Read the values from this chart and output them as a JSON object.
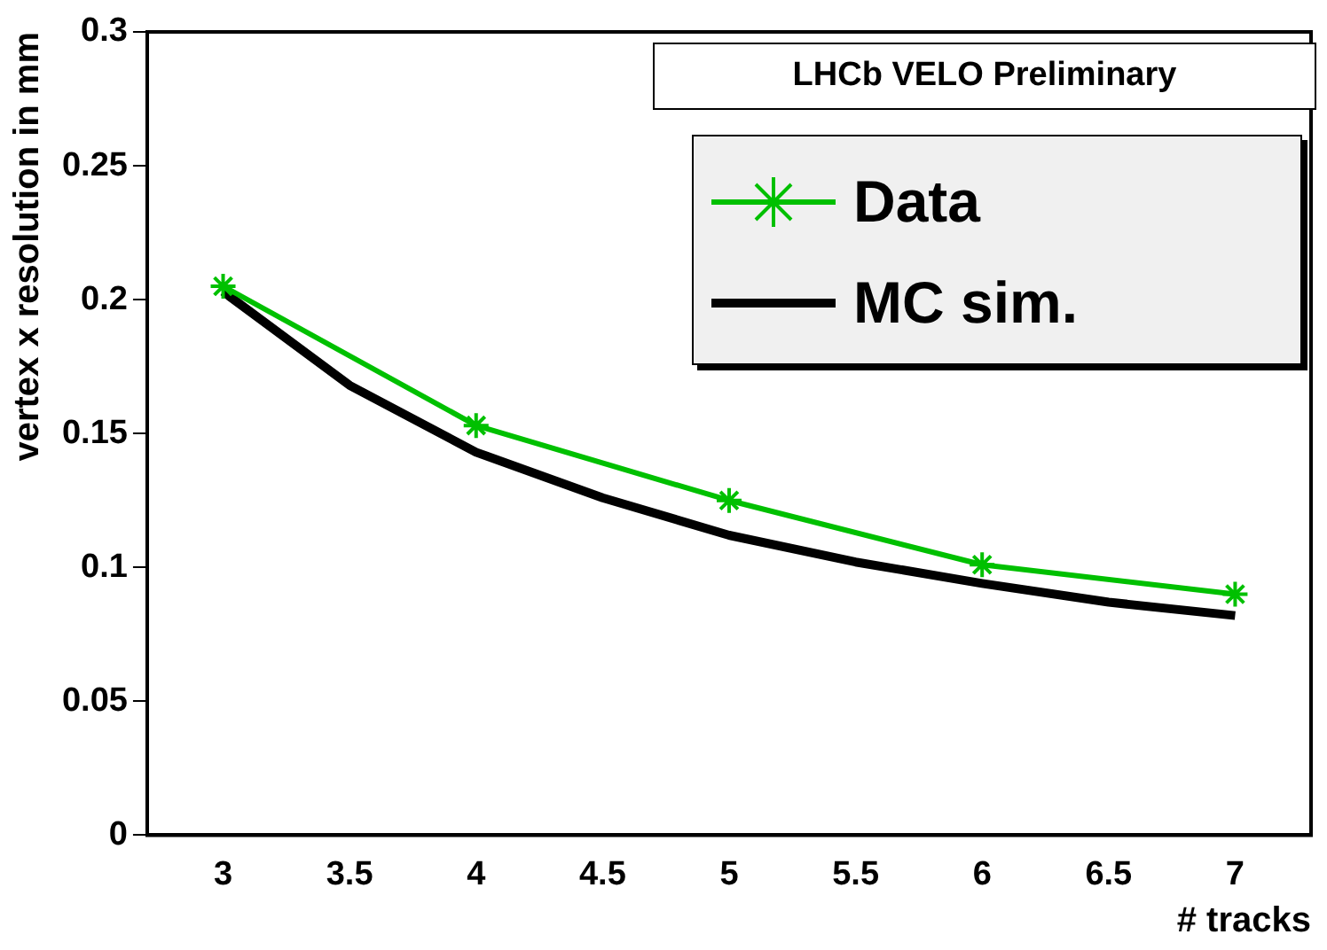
{
  "chart_data": {
    "type": "line",
    "xlabel": "# tracks",
    "ylabel": "vertex x resolution in mm",
    "annotations": [
      "LHCb VELO Preliminary"
    ],
    "xlim": [
      2.7,
      7.3
    ],
    "xticks": [
      3,
      3.5,
      4,
      4.5,
      5,
      5.5,
      6,
      6.5,
      7
    ],
    "ylim": [
      0,
      0.3
    ],
    "yticks": [
      0,
      0.05,
      0.1,
      0.15,
      0.2,
      0.25,
      0.3
    ],
    "grid": false,
    "legend": "top right",
    "series": [
      {
        "name": "Data",
        "color": "#00c000",
        "marker": "cross",
        "x": [
          3,
          4,
          5,
          6,
          7
        ],
        "values": [
          0.205,
          0.153,
          0.125,
          0.101,
          0.09
        ]
      },
      {
        "name": "MC sim.",
        "color": "#000000",
        "marker": "none",
        "x": [
          3,
          3.5,
          4,
          4.5,
          5,
          5.5,
          6,
          6.5,
          7
        ],
        "values": [
          0.203,
          0.168,
          0.143,
          0.126,
          0.112,
          0.102,
          0.094,
          0.087,
          0.082
        ]
      }
    ]
  }
}
